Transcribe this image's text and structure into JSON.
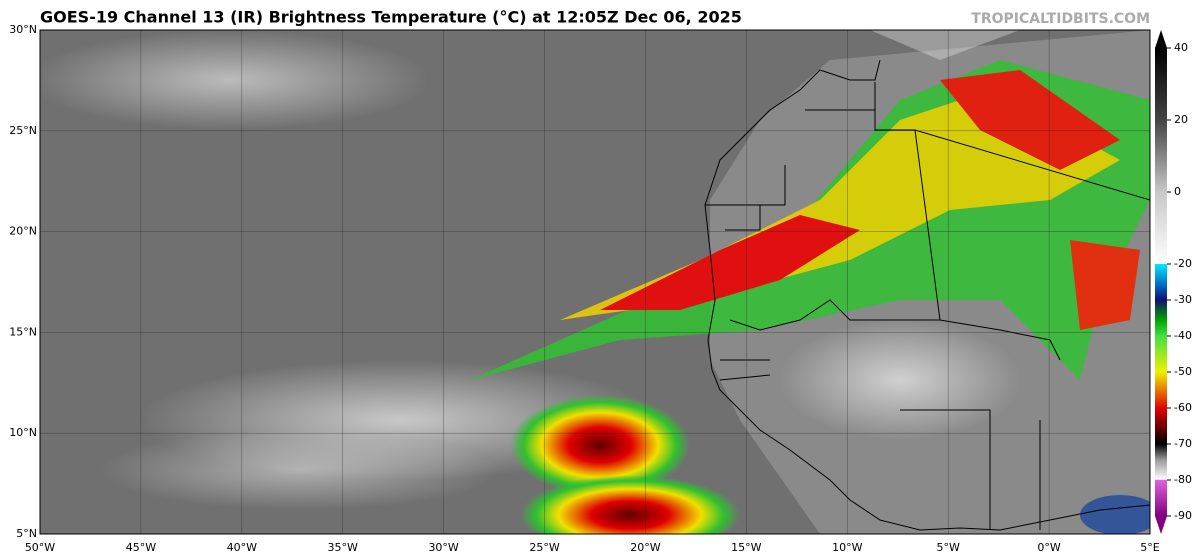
{
  "header": {
    "title": "GOES-19 Channel 13 (IR) Brightness Temperature (°C) at 12:05Z Dec 06, 2025",
    "credit": "TROPICALTIDBITS.COM"
  },
  "map": {
    "lat_labels": [
      "30°N",
      "25°N",
      "20°N",
      "15°N",
      "10°N",
      "5°N"
    ],
    "lon_labels": [
      "50°W",
      "45°W",
      "40°W",
      "35°W",
      "30°W",
      "25°W",
      "20°W",
      "15°W",
      "10°W",
      "5°W",
      "0°W",
      "5°E"
    ]
  },
  "colorbar": {
    "lim": [
      -90,
      40
    ],
    "ticks": [
      40,
      20,
      0,
      -20,
      -30,
      -40,
      -50,
      -60,
      -70,
      -80,
      -90
    ]
  }
}
